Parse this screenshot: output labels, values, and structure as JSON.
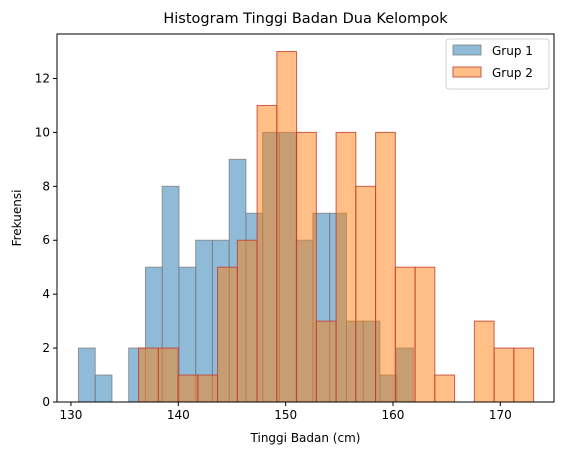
{
  "chart_data": {
    "type": "bar",
    "title": "Histogram Tinggi Badan Dua Kelompok",
    "xlabel": "Tinggi Badan (cm)",
    "ylabel": "Frekuensi",
    "xlim": [
      128.7,
      175.0
    ],
    "ylim": [
      0,
      13.65
    ],
    "xticks": [
      "130",
      "140",
      "150",
      "160",
      "170"
    ],
    "yticks": [
      "0",
      "2",
      "4",
      "6",
      "8",
      "10",
      "12"
    ],
    "grid": false,
    "legend": "top-right",
    "series": [
      {
        "name": "Grup 1",
        "color": "#1f77b4",
        "edge": "#7f7f7f",
        "alpha": 0.5,
        "bin_start": 130.7,
        "bin_width": 1.56,
        "values": [
          2,
          1,
          0,
          2,
          5,
          8,
          5,
          6,
          6,
          9,
          7,
          10,
          10,
          6,
          7,
          7,
          3,
          3,
          1,
          2
        ]
      },
      {
        "name": "Grup 2",
        "color": "#ff7f0e",
        "edge": "#c0392b",
        "alpha": 0.5,
        "bin_start": 136.3,
        "bin_width": 1.84,
        "values": [
          2,
          2,
          1,
          1,
          5,
          6,
          11,
          13,
          10,
          3,
          10,
          8,
          10,
          5,
          5,
          1,
          0,
          3,
          2,
          2
        ]
      }
    ]
  }
}
